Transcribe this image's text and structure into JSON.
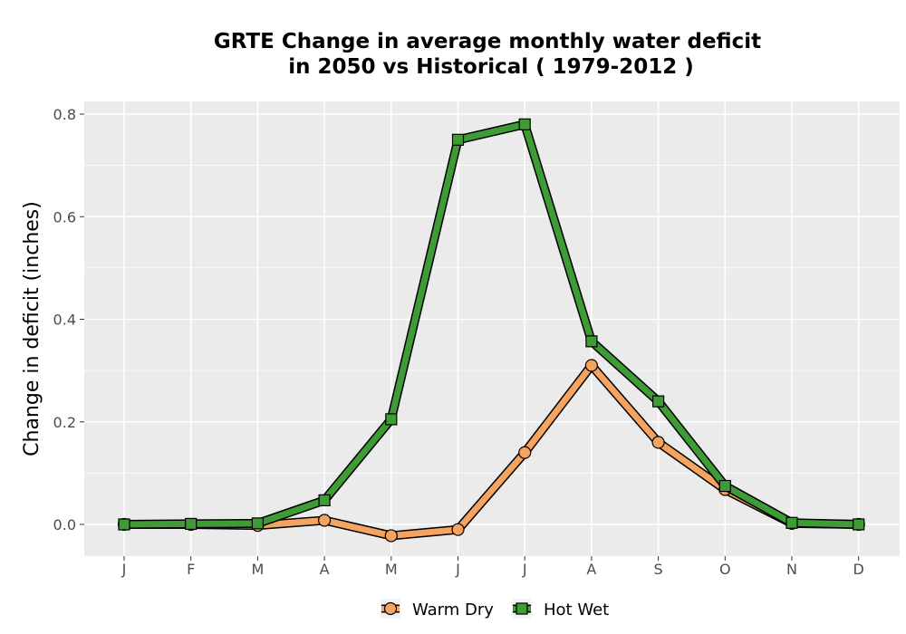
{
  "chart_data": {
    "type": "line",
    "title_line1": "GRTE  Change in average monthly water deficit",
    "title_line2": "in 2050 vs Historical ( 1979-2012 )",
    "xlabel": "",
    "ylabel": "Change in deficit (inches)",
    "categories": [
      "J",
      "F",
      "M",
      "A",
      "M",
      "J",
      "J",
      "A",
      "S",
      "O",
      "N",
      "D"
    ],
    "ylim": [
      -0.06,
      0.83
    ],
    "yticks": [
      0.0,
      0.2,
      0.4,
      0.6,
      0.8
    ],
    "ytick_labels": [
      "0.0",
      "0.2",
      "0.4",
      "0.6",
      "0.8"
    ],
    "grid": true,
    "legend_position": "bottom",
    "series": [
      {
        "name": "Warm Dry",
        "color": "#f4a460",
        "marker": "circle",
        "values": [
          0.0,
          0.0,
          -0.002,
          0.008,
          -0.022,
          -0.01,
          0.14,
          0.31,
          0.16,
          0.068,
          0.002,
          0.0
        ]
      },
      {
        "name": "Hot Wet",
        "color": "#3f9b35",
        "marker": "square",
        "values": [
          0.0,
          0.001,
          0.002,
          0.047,
          0.205,
          0.75,
          0.78,
          0.357,
          0.24,
          0.075,
          0.003,
          0.0
        ]
      }
    ]
  }
}
